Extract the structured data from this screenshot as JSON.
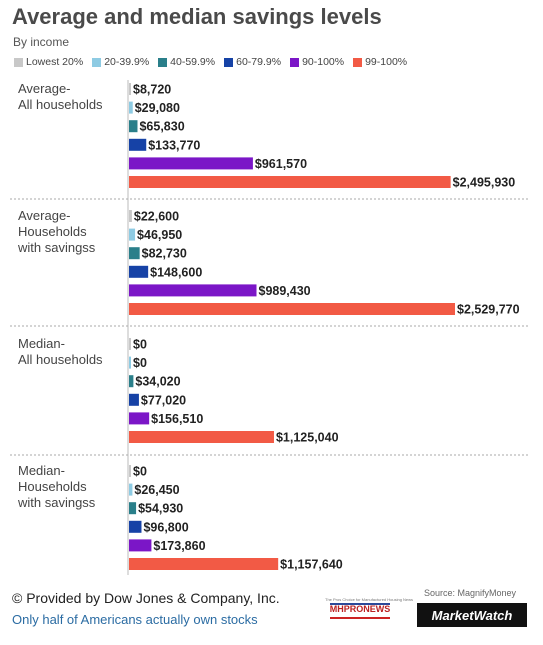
{
  "chart_data": {
    "type": "bar",
    "orientation": "horizontal",
    "title": "Average and median savings levels",
    "subtitle": "By income",
    "legend": [
      {
        "label": "Lowest 20%",
        "color": "#c8c8c8"
      },
      {
        "label": "20-39.9%",
        "color": "#8ecbe3"
      },
      {
        "label": "40-59.9%",
        "color": "#2a7f8a"
      },
      {
        "label": "60-79.9%",
        "color": "#1642a6"
      },
      {
        "label": "90-100%",
        "color": "#7b16c7"
      },
      {
        "label": "99-100%",
        "color": "#f25a45"
      }
    ],
    "groups": [
      {
        "label_lines": [
          "Average-",
          "All households"
        ],
        "values": [
          8720,
          29080,
          65830,
          133770,
          961570,
          2495930
        ],
        "value_labels": [
          "$8,720",
          "$29,080",
          "$65,830",
          "$133,770",
          "$961,570",
          "$2,495,930"
        ]
      },
      {
        "label_lines": [
          "Average-",
          "Households",
          "with savingss"
        ],
        "values": [
          22600,
          46950,
          82730,
          148600,
          989430,
          2529770
        ],
        "value_labels": [
          "$22,600",
          "$46,950",
          "$82,730",
          "$148,600",
          "$989,430",
          "$2,529,770"
        ]
      },
      {
        "label_lines": [
          "Median-",
          "All households"
        ],
        "values": [
          0,
          0,
          34020,
          77020,
          156510,
          1125040
        ],
        "value_labels": [
          "$0",
          "$0",
          "$34,020",
          "$77,020",
          "$156,510",
          "$1,125,040"
        ]
      },
      {
        "label_lines": [
          "Median-",
          "Households",
          "with savingss"
        ],
        "values": [
          0,
          26450,
          54930,
          96800,
          173860,
          1157640
        ],
        "value_labels": [
          "$0",
          "$26,450",
          "$54,930",
          "$96,800",
          "$173,860",
          "$1,157,640"
        ]
      }
    ]
  },
  "footer": {
    "credit": "© Provided by Dow Jones & Company, Inc.",
    "link": "Only half of Americans actually own stocks",
    "source": "Source: MagnifyMoney",
    "marketwatch": "MarketWatch",
    "mhpronews": "MHPRONEWS",
    "mhpronews_tag": "The Pros Choice for Manufactured Housing News"
  }
}
